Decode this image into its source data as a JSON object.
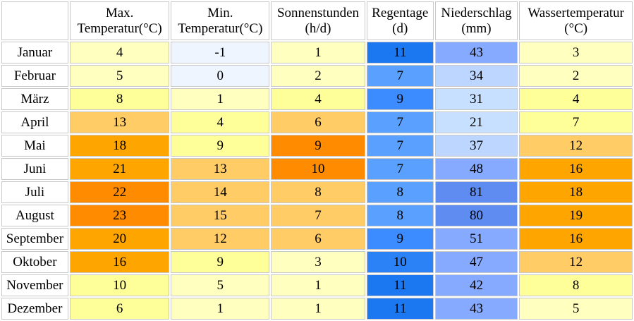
{
  "chart_data": {
    "type": "table",
    "columns": [
      {
        "key": "max_temp",
        "line1": "Max.",
        "line2": "Temperatur(°C)"
      },
      {
        "key": "min_temp",
        "line1": "Min.",
        "line2": "Temperatur(°C)"
      },
      {
        "key": "sunshine",
        "line1": "Sonnenstunden",
        "line2": "(h/d)"
      },
      {
        "key": "rain_days",
        "line1": "Regentage",
        "line2": "(d)"
      },
      {
        "key": "precipitation",
        "line1": "Niederschlag",
        "line2": "(mm)"
      },
      {
        "key": "water_temp",
        "line1": "Wassertemperatur",
        "line2": "(°C)"
      }
    ],
    "rows": [
      {
        "month": "Januar",
        "values": [
          4,
          -1,
          1,
          11,
          43,
          3
        ]
      },
      {
        "month": "Februar",
        "values": [
          5,
          0,
          2,
          7,
          34,
          2
        ]
      },
      {
        "month": "März",
        "values": [
          8,
          1,
          4,
          9,
          31,
          4
        ]
      },
      {
        "month": "April",
        "values": [
          13,
          4,
          6,
          7,
          21,
          7
        ]
      },
      {
        "month": "Mai",
        "values": [
          18,
          9,
          9,
          7,
          37,
          12
        ]
      },
      {
        "month": "Juni",
        "values": [
          21,
          13,
          10,
          7,
          48,
          16
        ]
      },
      {
        "month": "Juli",
        "values": [
          22,
          14,
          8,
          8,
          81,
          18
        ]
      },
      {
        "month": "August",
        "values": [
          23,
          15,
          7,
          8,
          80,
          19
        ]
      },
      {
        "month": "September",
        "values": [
          20,
          12,
          6,
          9,
          51,
          16
        ]
      },
      {
        "month": "Oktober",
        "values": [
          16,
          9,
          3,
          10,
          47,
          12
        ]
      },
      {
        "month": "November",
        "values": [
          10,
          5,
          1,
          11,
          42,
          8
        ]
      },
      {
        "month": "Dezember",
        "values": [
          6,
          1,
          1,
          11,
          43,
          5
        ]
      }
    ],
    "cell_colors": [
      [
        "#ffffc0",
        "#eef5ff",
        "#ffffc0",
        "#1c78f0",
        "#86aaff",
        "#ffffc0"
      ],
      [
        "#ffffc0",
        "#eef5ff",
        "#ffffc0",
        "#5aa0ff",
        "#bcd6ff",
        "#ffffc0"
      ],
      [
        "#ffff99",
        "#ffffc0",
        "#ffff99",
        "#3c8cff",
        "#c8e0ff",
        "#ffff99"
      ],
      [
        "#ffcc66",
        "#ffff99",
        "#ffcc66",
        "#5aa0ff",
        "#c8e0ff",
        "#ffff99"
      ],
      [
        "#ffa500",
        "#ffff99",
        "#ff8c00",
        "#5aa0ff",
        "#bcd6ff",
        "#ffcc66"
      ],
      [
        "#ffa500",
        "#ffcc66",
        "#ff8c00",
        "#5aa0ff",
        "#86aaff",
        "#ffa500"
      ],
      [
        "#ff8c00",
        "#ffcc66",
        "#ffcc66",
        "#5aa0ff",
        "#5e8cf0",
        "#ffa500"
      ],
      [
        "#ff8c00",
        "#ffcc66",
        "#ffcc66",
        "#5aa0ff",
        "#5e8cf0",
        "#ffa500"
      ],
      [
        "#ffa500",
        "#ffcc66",
        "#ffcc66",
        "#3c8cff",
        "#86aaff",
        "#ffa500"
      ],
      [
        "#ffa500",
        "#ffff99",
        "#ffffc0",
        "#2a82f6",
        "#86aaff",
        "#ffcc66"
      ],
      [
        "#ffff99",
        "#ffffc0",
        "#ffffc0",
        "#1c78f0",
        "#86aaff",
        "#ffff99"
      ],
      [
        "#ffff99",
        "#ffffc0",
        "#ffffc0",
        "#1c78f0",
        "#86aaff",
        "#ffffc0"
      ]
    ]
  }
}
